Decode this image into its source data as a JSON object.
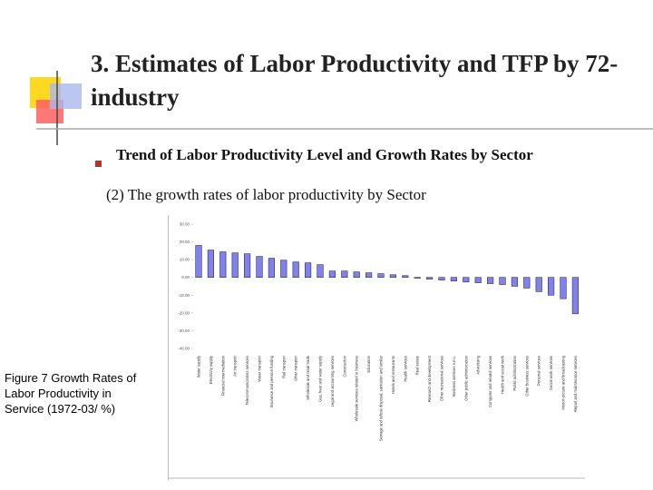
{
  "slide": {
    "title": "3. Estimates of Labor Productivity and TFP by 72-industry",
    "bullet": "Trend of Labor Productivity Level and Growth Rates by Sector",
    "subtitle": "(2) The growth rates of labor productivity by Sector",
    "caption": "Figure 7 Growth Rates of Labor Productivity in Service (1972-03/ %)"
  },
  "chart_data": {
    "type": "bar",
    "color": "#8080f0",
    "grid": false,
    "ylim": [
      -40,
      30
    ],
    "yticks": [
      {
        "value": 30,
        "label": "30.00"
      },
      {
        "value": 20,
        "label": "20.00"
      },
      {
        "value": 10,
        "label": "10.00"
      },
      {
        "value": 0,
        "label": "0.00"
      },
      {
        "value": -10,
        "label": "-10.00"
      },
      {
        "value": -20,
        "label": "-20.00"
      },
      {
        "value": -30,
        "label": "-30.00"
      },
      {
        "value": -40,
        "label": "-40.00"
      }
    ],
    "categories": [
      "Water supply",
      "Electricity supply",
      "Financial intermediation",
      "Air transport",
      "Telecommunications services",
      "Water transport",
      "Insurance and pension funding",
      "Rail transport",
      "Other transport",
      "Wholesale and retail trade",
      "Gas, heat and water supply",
      "Legal and accounting services",
      "Construction",
      "Wholesale services related to business",
      "Education",
      "Sewage and refuse disposal, sanitation and similar",
      "Hotels and restaurants",
      "Health services",
      "Real estate",
      "Research and development",
      "Other recreational services",
      "Business services n.e.c.",
      "Other public administration",
      "Advertising",
      "Computer and related services",
      "Health and social work",
      "Public administration",
      "Other business services",
      "Personal services",
      "Social work services",
      "Motion picture and broadcasting",
      "Repair and maintenance services"
    ],
    "values": [
      18,
      15.4,
      14.4,
      13.8,
      13.3,
      11.8,
      10.8,
      9.7,
      8.7,
      8.2,
      7.2,
      3.6,
      3.6,
      3.1,
      2.6,
      2.1,
      1.5,
      1,
      -0.5,
      -1,
      -1.5,
      -2,
      -2.6,
      -3,
      -3.5,
      -4,
      -5,
      -6,
      -8,
      -10,
      -12,
      -20.5
    ]
  }
}
